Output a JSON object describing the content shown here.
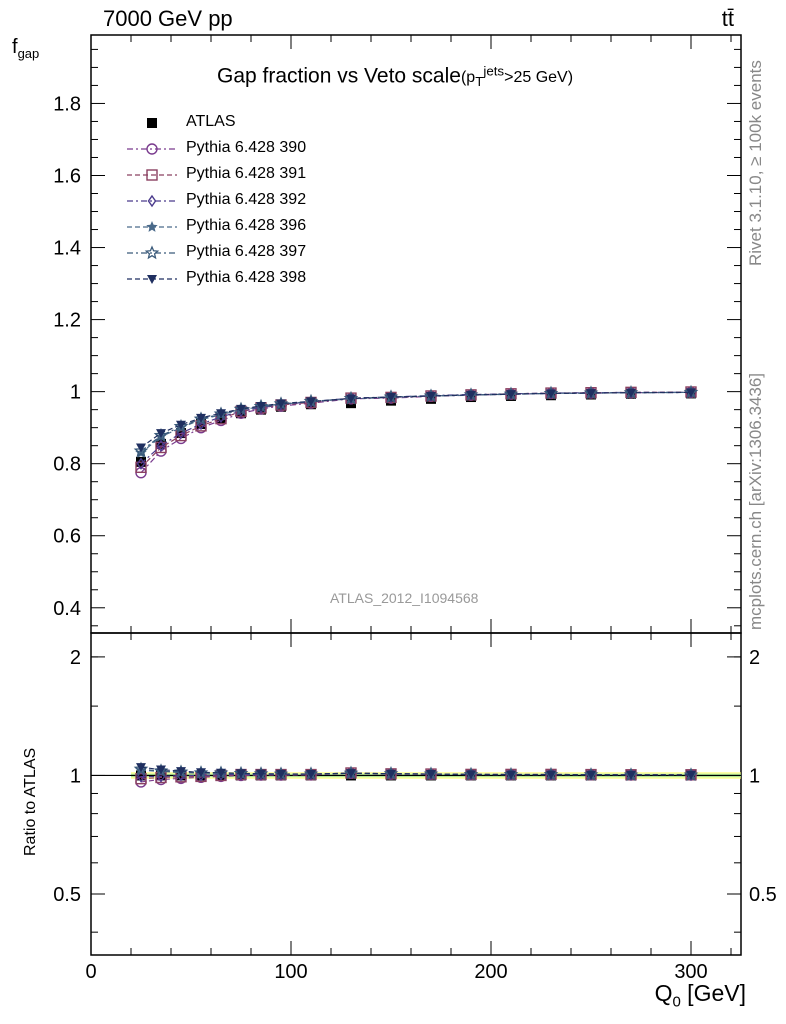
{
  "header": {
    "left": "7000 GeV pp",
    "right": "tt̄"
  },
  "side_text": {
    "rivet": "Rivet 3.1.10, ≥ 100k events",
    "mcplots": "mcplots.cern.ch [arXiv:1306.3436]"
  },
  "watermark": "ATLAS_2012_I1094568",
  "chart_data": {
    "type": "scatter",
    "title": "Gap fraction vs Veto scale",
    "title_suffix": "(p_T^jets>25 GeV)",
    "xlabel": "Q0 [GeV]",
    "ylabel": "f_gap",
    "ratio_ylabel": "Ratio to ATLAS",
    "xlim": [
      0,
      325
    ],
    "ylim": [
      0.33,
      1.99
    ],
    "ratio_ylim": [
      0.35,
      2.3
    ],
    "x_ticks": [
      "0",
      "100",
      "200",
      "300"
    ],
    "y_ticks": [
      "0.4",
      "0.6",
      "0.8",
      "1",
      "1.2",
      "1.4",
      "1.6",
      "1.8"
    ],
    "ratio_y_ticks": [
      "0.5",
      "1",
      "2"
    ],
    "ratio_y_ticks_right": [
      "0.5",
      "1",
      "2"
    ],
    "x": [
      25,
      35,
      45,
      55,
      65,
      75,
      85,
      95,
      110,
      130,
      150,
      170,
      190,
      210,
      230,
      250,
      270,
      300
    ],
    "series": [
      {
        "name": "ATLAS",
        "color": "#000000",
        "marker": "filled-square",
        "values": [
          0.805,
          0.855,
          0.885,
          0.91,
          0.925,
          0.94,
          0.95,
          0.958,
          0.965,
          0.968,
          0.975,
          0.98,
          0.985,
          0.988,
          0.99,
          0.992,
          0.994,
          0.995
        ]
      },
      {
        "name": "Pythia 6.428 390",
        "color": "#7a3b8e",
        "marker": "open-circle",
        "values": [
          0.775,
          0.835,
          0.87,
          0.9,
          0.92,
          0.94,
          0.952,
          0.96,
          0.968,
          0.98,
          0.982,
          0.987,
          0.99,
          0.993,
          0.995,
          0.996,
          0.997,
          0.998
        ]
      },
      {
        "name": "Pythia 6.428 391",
        "color": "#8a4060",
        "marker": "open-square",
        "values": [
          0.79,
          0.845,
          0.878,
          0.905,
          0.925,
          0.945,
          0.955,
          0.963,
          0.97,
          0.982,
          0.984,
          0.988,
          0.991,
          0.994,
          0.996,
          0.997,
          0.998,
          0.999
        ]
      },
      {
        "name": "Pythia 6.428 392",
        "color": "#4a3a8c",
        "marker": "open-diamond",
        "values": [
          0.8,
          0.85,
          0.885,
          0.91,
          0.93,
          0.946,
          0.956,
          0.964,
          0.972,
          0.982,
          0.985,
          0.989,
          0.992,
          0.994,
          0.996,
          0.997,
          0.998,
          0.998
        ]
      },
      {
        "name": "Pythia 6.428 396",
        "color": "#4a6a8a",
        "marker": "filled-star",
        "values": [
          0.83,
          0.875,
          0.9,
          0.922,
          0.936,
          0.95,
          0.958,
          0.965,
          0.972,
          0.98,
          0.984,
          0.988,
          0.99,
          0.993,
          0.995,
          0.996,
          0.997,
          0.998
        ]
      },
      {
        "name": "Pythia 6.428 397",
        "color": "#3a5a7a",
        "marker": "open-star",
        "values": [
          0.835,
          0.878,
          0.903,
          0.924,
          0.938,
          0.951,
          0.959,
          0.966,
          0.973,
          0.981,
          0.985,
          0.988,
          0.991,
          0.993,
          0.995,
          0.996,
          0.997,
          0.998
        ]
      },
      {
        "name": "Pythia 6.428 398",
        "color": "#1f2f60",
        "marker": "filled-triangle-down",
        "values": [
          0.845,
          0.885,
          0.908,
          0.927,
          0.94,
          0.952,
          0.96,
          0.967,
          0.973,
          0.981,
          0.985,
          0.988,
          0.991,
          0.993,
          0.995,
          0.996,
          0.997,
          0.998
        ]
      }
    ]
  }
}
